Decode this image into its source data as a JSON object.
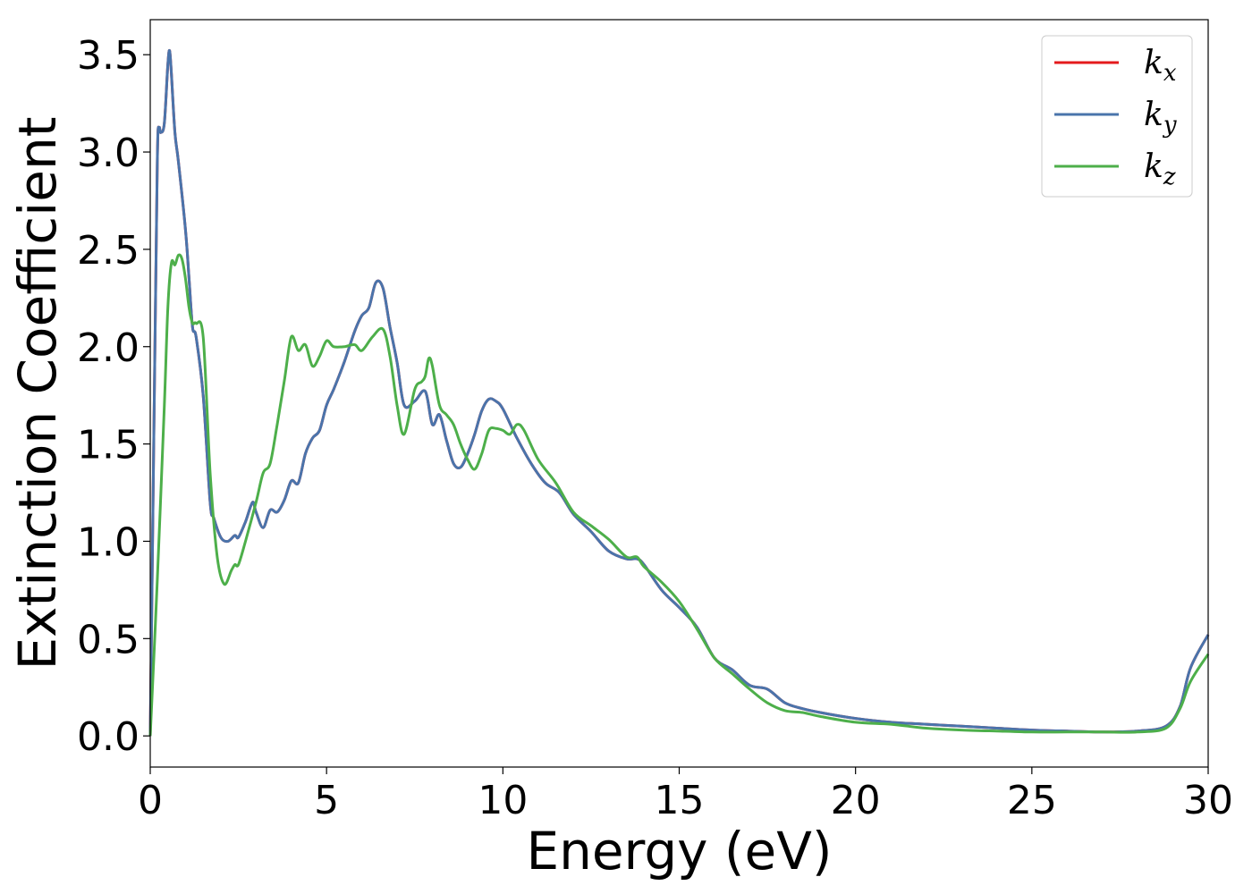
{
  "chart_data": {
    "type": "line",
    "xlabel": "Energy (eV)",
    "ylabel": "Extinction Coefficient",
    "xlim": [
      0,
      30
    ],
    "ylim": [
      -0.16,
      3.68
    ],
    "xticks": [
      0,
      5,
      10,
      15,
      20,
      25,
      30
    ],
    "xtick_labels": [
      "0",
      "5",
      "10",
      "15",
      "20",
      "25",
      "30"
    ],
    "yticks": [
      0.0,
      0.5,
      1.0,
      1.5,
      2.0,
      2.5,
      3.0,
      3.5
    ],
    "ytick_labels": [
      "0.0",
      "0.5",
      "1.0",
      "1.5",
      "2.0",
      "2.5",
      "3.0",
      "3.5"
    ],
    "grid": false,
    "legend_position": "top-right",
    "series": [
      {
        "name": "k_x",
        "label_base": "k",
        "label_sub": "x",
        "color": "#e41a1c",
        "x": [
          0,
          0.1,
          0.2,
          0.25,
          0.3,
          0.4,
          0.5,
          0.55,
          0.6,
          0.7,
          0.8,
          1.0,
          1.1,
          1.2,
          1.3,
          1.5,
          1.7,
          1.8,
          2.0,
          2.2,
          2.4,
          2.5,
          2.7,
          2.9,
          3.0,
          3.2,
          3.4,
          3.6,
          3.8,
          4.0,
          4.2,
          4.4,
          4.6,
          4.8,
          5.0,
          5.2,
          5.5,
          5.8,
          6.0,
          6.2,
          6.4,
          6.6,
          6.8,
          7.0,
          7.2,
          7.5,
          7.8,
          8.0,
          8.2,
          8.4,
          8.6,
          8.8,
          9.0,
          9.2,
          9.4,
          9.6,
          9.8,
          10.0,
          10.4,
          10.8,
          11.2,
          11.6,
          12.0,
          12.5,
          13.0,
          13.5,
          13.8,
          14.0,
          14.5,
          15.0,
          15.5,
          16.0,
          16.5,
          17.0,
          17.5,
          18.0,
          18.5,
          19.0,
          20.0,
          21.0,
          22.0,
          23.0,
          24.0,
          25.0,
          26.0,
          27.0,
          28.0,
          28.8,
          29.2,
          29.5,
          30.0
        ],
        "y": [
          0.0,
          1.5,
          2.95,
          3.12,
          3.1,
          3.15,
          3.45,
          3.52,
          3.4,
          3.1,
          2.95,
          2.6,
          2.35,
          2.1,
          2.05,
          1.75,
          1.2,
          1.12,
          1.02,
          1.0,
          1.03,
          1.02,
          1.1,
          1.2,
          1.15,
          1.07,
          1.16,
          1.15,
          1.21,
          1.31,
          1.3,
          1.45,
          1.53,
          1.57,
          1.7,
          1.78,
          1.92,
          2.08,
          2.16,
          2.2,
          2.33,
          2.3,
          2.1,
          1.92,
          1.7,
          1.72,
          1.77,
          1.6,
          1.65,
          1.52,
          1.4,
          1.38,
          1.45,
          1.55,
          1.67,
          1.73,
          1.72,
          1.68,
          1.53,
          1.4,
          1.3,
          1.25,
          1.14,
          1.05,
          0.95,
          0.91,
          0.91,
          0.88,
          0.75,
          0.66,
          0.56,
          0.4,
          0.34,
          0.26,
          0.24,
          0.17,
          0.14,
          0.12,
          0.09,
          0.07,
          0.06,
          0.05,
          0.04,
          0.03,
          0.025,
          0.02,
          0.025,
          0.05,
          0.15,
          0.35,
          0.52
        ]
      },
      {
        "name": "k_y",
        "label_base": "k",
        "label_sub": "y",
        "color": "#4a74ab",
        "x": [
          0,
          0.1,
          0.2,
          0.25,
          0.3,
          0.4,
          0.5,
          0.55,
          0.6,
          0.7,
          0.8,
          1.0,
          1.1,
          1.2,
          1.3,
          1.5,
          1.7,
          1.8,
          2.0,
          2.2,
          2.4,
          2.5,
          2.7,
          2.9,
          3.0,
          3.2,
          3.4,
          3.6,
          3.8,
          4.0,
          4.2,
          4.4,
          4.6,
          4.8,
          5.0,
          5.2,
          5.5,
          5.8,
          6.0,
          6.2,
          6.4,
          6.6,
          6.8,
          7.0,
          7.2,
          7.5,
          7.8,
          8.0,
          8.2,
          8.4,
          8.6,
          8.8,
          9.0,
          9.2,
          9.4,
          9.6,
          9.8,
          10.0,
          10.4,
          10.8,
          11.2,
          11.6,
          12.0,
          12.5,
          13.0,
          13.5,
          13.8,
          14.0,
          14.5,
          15.0,
          15.5,
          16.0,
          16.5,
          17.0,
          17.5,
          18.0,
          18.5,
          19.0,
          20.0,
          21.0,
          22.0,
          23.0,
          24.0,
          25.0,
          26.0,
          27.0,
          28.0,
          28.8,
          29.2,
          29.5,
          30.0
        ],
        "y": [
          0.0,
          1.5,
          2.95,
          3.12,
          3.1,
          3.15,
          3.45,
          3.52,
          3.4,
          3.1,
          2.95,
          2.6,
          2.35,
          2.1,
          2.05,
          1.75,
          1.2,
          1.12,
          1.02,
          1.0,
          1.03,
          1.02,
          1.1,
          1.2,
          1.15,
          1.07,
          1.16,
          1.15,
          1.21,
          1.31,
          1.3,
          1.45,
          1.53,
          1.57,
          1.7,
          1.78,
          1.92,
          2.08,
          2.16,
          2.2,
          2.33,
          2.3,
          2.1,
          1.92,
          1.7,
          1.72,
          1.77,
          1.6,
          1.65,
          1.52,
          1.4,
          1.38,
          1.45,
          1.55,
          1.67,
          1.73,
          1.72,
          1.68,
          1.53,
          1.4,
          1.3,
          1.25,
          1.14,
          1.05,
          0.95,
          0.91,
          0.91,
          0.88,
          0.75,
          0.66,
          0.56,
          0.4,
          0.34,
          0.26,
          0.24,
          0.17,
          0.14,
          0.12,
          0.09,
          0.07,
          0.06,
          0.05,
          0.04,
          0.03,
          0.025,
          0.02,
          0.025,
          0.05,
          0.15,
          0.35,
          0.52
        ]
      },
      {
        "name": "k_z",
        "label_base": "k",
        "label_sub": "z",
        "color": "#4daf4a",
        "x": [
          0,
          0.2,
          0.4,
          0.5,
          0.6,
          0.7,
          0.8,
          0.9,
          1.0,
          1.1,
          1.2,
          1.3,
          1.5,
          1.7,
          1.9,
          2.1,
          2.3,
          2.4,
          2.5,
          2.7,
          3.0,
          3.2,
          3.4,
          3.6,
          3.8,
          4.0,
          4.2,
          4.4,
          4.6,
          4.8,
          5.0,
          5.2,
          5.5,
          5.8,
          6.0,
          6.3,
          6.6,
          6.8,
          7.0,
          7.2,
          7.5,
          7.7,
          7.8,
          7.9,
          8.0,
          8.2,
          8.4,
          8.6,
          8.8,
          9.0,
          9.2,
          9.4,
          9.6,
          9.8,
          10.0,
          10.2,
          10.4,
          10.6,
          11.0,
          11.5,
          12.0,
          12.5,
          13.0,
          13.5,
          13.8,
          14.0,
          14.5,
          15.0,
          15.5,
          16.0,
          16.5,
          17.0,
          17.5,
          18.0,
          18.5,
          19.0,
          20.0,
          21.0,
          22.0,
          23.0,
          24.0,
          25.0,
          26.0,
          27.0,
          28.0,
          28.8,
          29.2,
          29.5,
          30.0
        ],
        "y": [
          0.0,
          0.8,
          1.7,
          2.2,
          2.43,
          2.42,
          2.47,
          2.45,
          2.35,
          2.2,
          2.12,
          2.12,
          2.05,
          1.35,
          0.92,
          0.78,
          0.85,
          0.88,
          0.88,
          1.0,
          1.2,
          1.35,
          1.4,
          1.6,
          1.82,
          2.05,
          1.98,
          2.01,
          1.9,
          1.95,
          2.03,
          2.0,
          2.0,
          2.01,
          1.98,
          2.05,
          2.09,
          1.95,
          1.7,
          1.55,
          1.78,
          1.82,
          1.85,
          1.94,
          1.9,
          1.7,
          1.65,
          1.6,
          1.5,
          1.42,
          1.37,
          1.45,
          1.57,
          1.58,
          1.57,
          1.55,
          1.6,
          1.57,
          1.42,
          1.3,
          1.15,
          1.08,
          1.01,
          0.92,
          0.92,
          0.87,
          0.79,
          0.69,
          0.55,
          0.4,
          0.32,
          0.24,
          0.17,
          0.13,
          0.12,
          0.1,
          0.07,
          0.06,
          0.04,
          0.03,
          0.025,
          0.02,
          0.02,
          0.02,
          0.02,
          0.04,
          0.14,
          0.28,
          0.42
        ]
      }
    ]
  }
}
